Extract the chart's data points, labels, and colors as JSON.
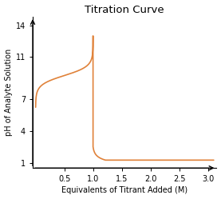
{
  "title": "Titration Curve",
  "xlabel": "Equivalents of Titrant Added (M)",
  "ylabel": "pH of Analyte Solution",
  "xlim": [
    -0.05,
    3.15
  ],
  "ylim": [
    0.5,
    14.8
  ],
  "xticks": [
    0.5,
    1.0,
    1.5,
    2.0,
    2.5,
    3.0
  ],
  "yticks": [
    1,
    4,
    7,
    11,
    14
  ],
  "line_color": "#E0823A",
  "background_color": "#ffffff",
  "title_fontsize": 9.5,
  "label_fontsize": 7,
  "tick_fontsize": 7
}
